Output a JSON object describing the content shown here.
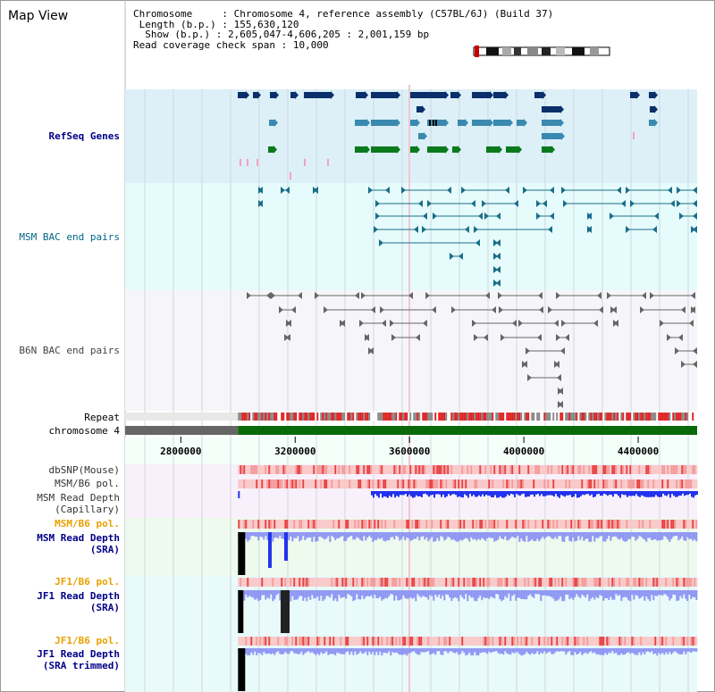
{
  "page": {
    "title": "Map View"
  },
  "info": {
    "chromosome_key": "Chromosome",
    "chromosome_val": "Chromosome 4, reference assembly (C57BL/6J) (Build 37)",
    "length_key": "Length (b.p.)",
    "length_val": "155,630,120",
    "show_key": "Show (b.p.)",
    "show_val": "2,605,047-4,606,205 : 2,001,159 bp",
    "span_key": "Read coverage check span",
    "span_val": "10,000"
  },
  "tracks": {
    "refseq": "RefSeq Genes",
    "msm_bac": "MSM BAC end pairs",
    "b6n_bac": "B6N BAC end pairs",
    "repeat": "Repeat",
    "chromosome": "chromosome 4",
    "dbsnp": "dbSNP(Mouse)",
    "msm_b6_pol_a": "MSM/B6 pol.",
    "msm_depth_cap_1": "MSM Read Depth",
    "msm_depth_cap_2": "(Capillary)",
    "msm_b6_pol_b": "MSM/B6 pol.",
    "msm_depth_sra_1": "MSM Read Depth",
    "msm_depth_sra_2": "(SRA)",
    "jf1_b6_pol_a": "JF1/B6 pol.",
    "jf1_depth_sra_1": "JF1 Read Depth",
    "jf1_depth_sra_2": "(SRA)",
    "jf1_b6_pol_b": "JF1/B6 pol.",
    "jf1_depth_trim_1": "JF1 Read Depth",
    "jf1_depth_trim_2": "(SRA trimmed)"
  },
  "axis": {
    "ticks": [
      "2800000",
      "3200000",
      "3600000",
      "4000000",
      "4400000"
    ],
    "tick_values": [
      2800000,
      3200000,
      3600000,
      4000000,
      4400000
    ],
    "range": [
      2605047,
      4606205
    ],
    "data_start": 3000000
  },
  "colors": {
    "refseq_bg": "#ddf0f8",
    "msm_bac_bg": "#e6fbfb",
    "b6n_bac_bg": "#f6f6fa",
    "refseq_dark": "#0b2f6b",
    "refseq_mid": "#3a8ab0",
    "refseq_green": "#0a7a1c",
    "msm_bac_line": "#1a6f8a",
    "b6n_bac_line": "#666666",
    "chromosome_grey": "#666666",
    "chromosome_green": "#0a6a0a",
    "depth_blue": "#2233ee",
    "depth_light": "#8c94f4",
    "label_navy": "#000088",
    "label_orange": "#e8a000",
    "label_teal": "#006688"
  }
}
